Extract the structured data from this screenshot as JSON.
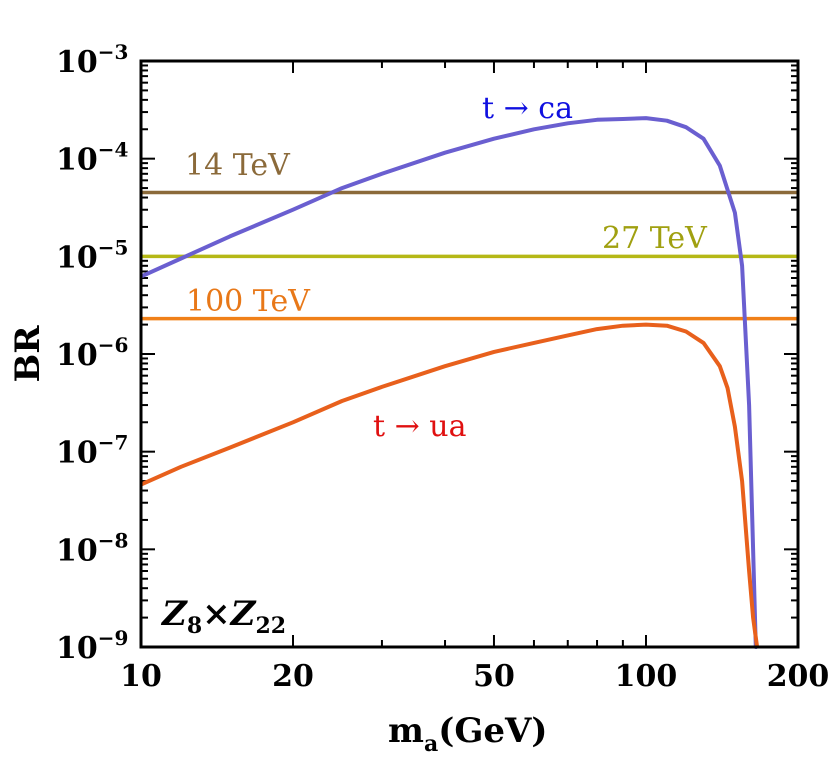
{
  "chart_data": {
    "type": "line",
    "xscale": "log",
    "yscale": "log",
    "xlim": [
      10,
      200
    ],
    "ylim": [
      1e-09,
      0.001
    ],
    "xlabel": "m",
    "xlabel_sub": "a",
    "xlabel_unit": "(GeV)",
    "ylabel": "BR",
    "x_ticks": [
      {
        "value": 10,
        "label": "10"
      },
      {
        "value": 20,
        "label": "20"
      },
      {
        "value": 50,
        "label": "50"
      },
      {
        "value": 100,
        "label": "100"
      },
      {
        "value": 200,
        "label": "200"
      }
    ],
    "y_ticks": [
      {
        "value": 1e-09,
        "base": "10",
        "exp": "−9"
      },
      {
        "value": 1e-08,
        "base": "10",
        "exp": "−8"
      },
      {
        "value": 1e-07,
        "base": "10",
        "exp": "−7"
      },
      {
        "value": 1e-06,
        "base": "10",
        "exp": "−6"
      },
      {
        "value": 1e-05,
        "base": "10",
        "exp": "−5"
      },
      {
        "value": 0.0001,
        "base": "10",
        "exp": "−4"
      },
      {
        "value": 0.001,
        "base": "10",
        "exp": "−3"
      }
    ],
    "model_label": {
      "a": "Z",
      "a_sub": "8",
      "times": "×",
      "b": "Z",
      "b_sub": "22"
    },
    "series": [
      {
        "name": "t → ca",
        "color": "#6a5fd0",
        "label_color": "#1010e0",
        "x": [
          10,
          12,
          15,
          20,
          25,
          30,
          40,
          50,
          60,
          70,
          80,
          90,
          100,
          110,
          120,
          130,
          140,
          150,
          155,
          160,
          163,
          165,
          166
        ],
        "y": [
          6.2e-06,
          9.5e-06,
          1.6e-05,
          3e-05,
          5e-05,
          7e-05,
          0.000115,
          0.00016,
          0.0002,
          0.00023,
          0.00025,
          0.000255,
          0.00026,
          0.000245,
          0.00021,
          0.00016,
          8.5e-05,
          2.8e-05,
          8e-06,
          3e-07,
          1e-08,
          1e-09,
          1e-09
        ]
      },
      {
        "name": "t → ua",
        "color": "#e8601c",
        "label_color": "#e01010",
        "x": [
          10,
          12,
          15,
          20,
          25,
          30,
          40,
          50,
          60,
          70,
          80,
          90,
          100,
          110,
          120,
          130,
          140,
          145,
          150,
          155,
          160,
          163,
          166
        ],
        "y": [
          4.6e-08,
          7e-08,
          1.1e-07,
          2e-07,
          3.3e-07,
          4.6e-07,
          7.5e-07,
          1.05e-06,
          1.3e-06,
          1.55e-06,
          1.8e-06,
          1.95e-06,
          2e-06,
          1.95e-06,
          1.7e-06,
          1.3e-06,
          7.5e-07,
          4.5e-07,
          1.8e-07,
          5e-08,
          6e-09,
          2e-09,
          1e-09
        ]
      }
    ],
    "hlines": [
      {
        "label": "14 TeV",
        "value": 4.5e-05,
        "color": "#8b6a3a",
        "label_color": "#8b6a3a"
      },
      {
        "label": "27 TeV",
        "value": 1e-05,
        "color": "#b5b816",
        "label_color": "#a0a010"
      },
      {
        "label": "100 TeV",
        "value": 2.3e-06,
        "color": "#f08018",
        "label_color": "#e87818"
      }
    ]
  }
}
